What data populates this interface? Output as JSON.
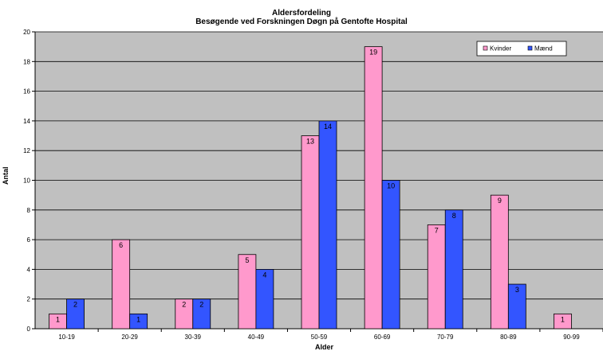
{
  "chart_data": {
    "type": "bar",
    "title": "Aldersfordeling",
    "subtitle": "Besøgende ved Forskningen Døgn på Gentofte Hospital",
    "xlabel": "Alder",
    "ylabel": "Antal",
    "categories": [
      "10-19",
      "20-29",
      "30-39",
      "40-49",
      "50-59",
      "60-69",
      "70-79",
      "80-89",
      "90-99"
    ],
    "series": [
      {
        "name": "Kvinder",
        "color": "#ff99cc",
        "values": [
          1,
          6,
          2,
          5,
          13,
          19,
          7,
          9,
          1
        ]
      },
      {
        "name": "Mænd",
        "color": "#3355ff",
        "values": [
          2,
          1,
          2,
          4,
          14,
          10,
          8,
          3,
          0
        ]
      }
    ],
    "ylim": [
      0,
      20
    ],
    "yticks": [
      0,
      2,
      4,
      6,
      8,
      10,
      12,
      14,
      16,
      18,
      20
    ],
    "data_labels": true,
    "grid": true,
    "plot_background": "#c0c0c0",
    "legend_position": "top-right"
  }
}
